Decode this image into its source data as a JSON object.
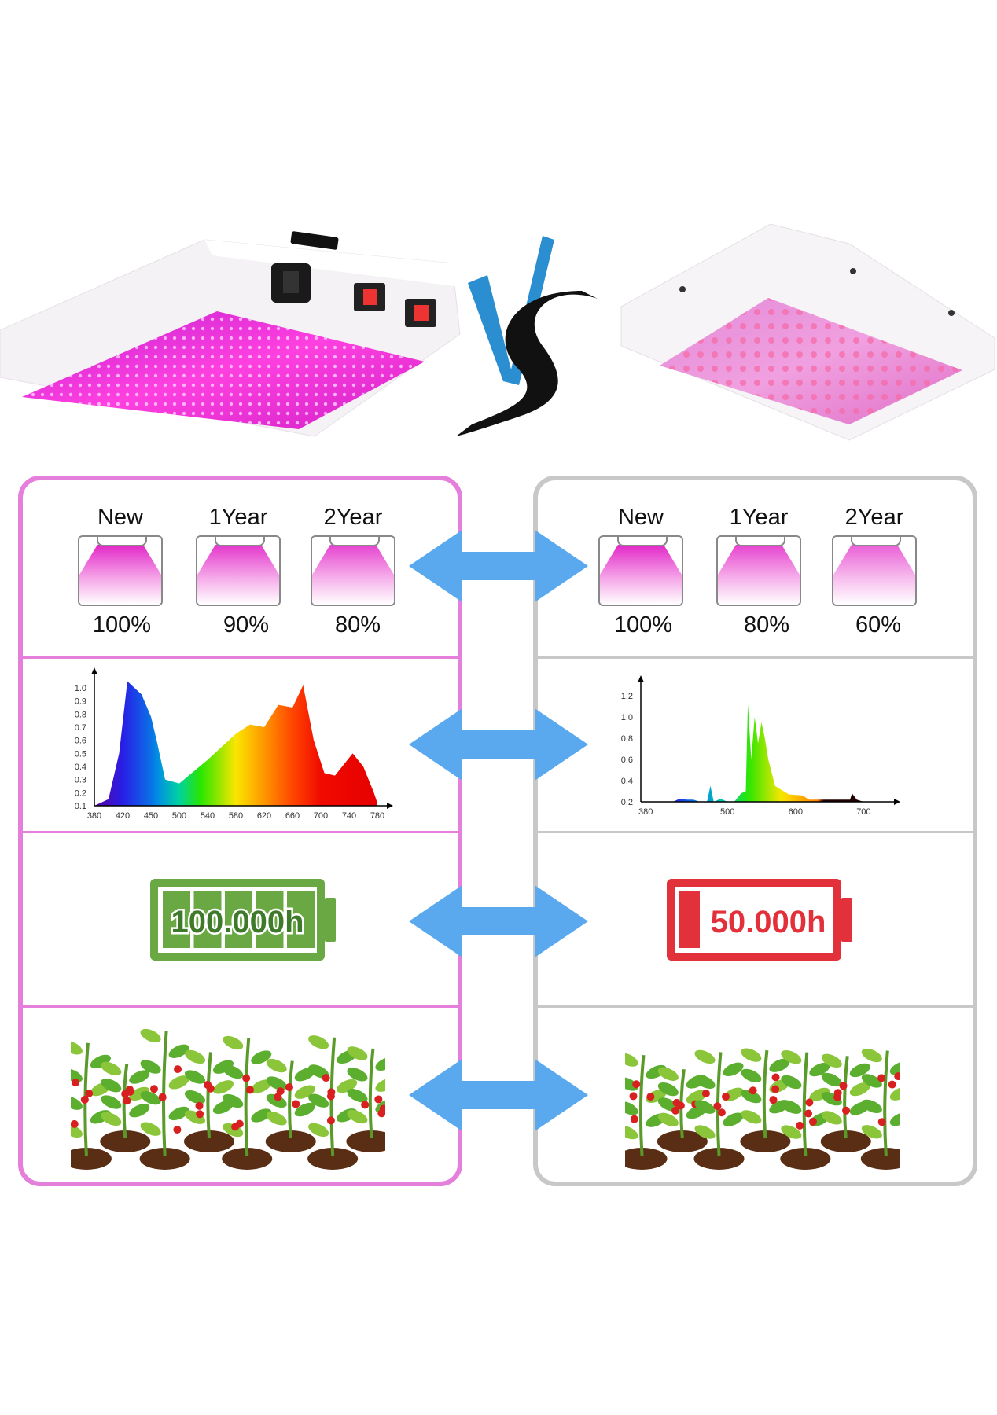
{
  "colors": {
    "left_panel_border": "#e47fdc",
    "right_panel_border": "#c8c8c8",
    "arrow": "#5aa9ee",
    "led_magenta": "#e040d0",
    "battery_green": "#6aa843",
    "battery_red": "#e2313a"
  },
  "header": {
    "vs_logo": "VS"
  },
  "left": {
    "decay": [
      {
        "label": "New",
        "percent": "100%",
        "level": 1.0
      },
      {
        "label": "1Year",
        "percent": "90%",
        "level": 0.9
      },
      {
        "label": "2Year",
        "percent": "80%",
        "level": 0.8
      }
    ],
    "battery": {
      "text": "100.000h",
      "fill": 1.0
    }
  },
  "right": {
    "decay": [
      {
        "label": "New",
        "percent": "100%",
        "level": 1.0
      },
      {
        "label": "1Year",
        "percent": "80%",
        "level": 0.8
      },
      {
        "label": "2Year",
        "percent": "60%",
        "level": 0.6
      }
    ],
    "battery": {
      "text": "50.000h",
      "fill": 0.1
    }
  },
  "chart_data": [
    {
      "type": "area",
      "xticks": [
        "380",
        "420",
        "450",
        "500",
        "540",
        "580",
        "620",
        "660",
        "700",
        "740",
        "780"
      ],
      "yticks": [
        "0.1",
        "0.2",
        "0.3",
        "0.4",
        "0.5",
        "0.6",
        "0.7",
        "0.8",
        "0.9",
        "1.0"
      ],
      "ylim": [
        0.1,
        1.0
      ],
      "x": [
        380,
        400,
        415,
        425,
        440,
        450,
        460,
        475,
        500,
        540,
        580,
        600,
        620,
        640,
        660,
        675,
        690,
        705,
        720,
        745,
        760,
        775,
        780
      ],
      "y": [
        0.1,
        0.15,
        0.5,
        1.05,
        0.95,
        0.78,
        0.6,
        0.3,
        0.27,
        0.45,
        0.65,
        0.72,
        0.7,
        0.87,
        0.85,
        1.02,
        0.6,
        0.35,
        0.33,
        0.5,
        0.4,
        0.2,
        0.12
      ]
    },
    {
      "type": "area",
      "xticks": [
        "380",
        "500",
        "600",
        "700"
      ],
      "yticks": [
        "0.2",
        "0.4",
        "0.6",
        "0.8",
        "1.0",
        "1.2"
      ],
      "xlim": [
        380,
        720
      ],
      "ylim": [
        0.2,
        1.2
      ],
      "x": [
        380,
        420,
        430,
        440,
        450,
        460,
        470,
        475,
        480,
        490,
        500,
        510,
        520,
        527,
        530,
        535,
        540,
        545,
        550,
        555,
        560,
        570,
        590,
        610,
        620,
        680,
        683,
        690,
        700
      ],
      "y": [
        0.2,
        0.2,
        0.23,
        0.22,
        0.22,
        0.2,
        0.2,
        0.35,
        0.2,
        0.23,
        0.2,
        0.2,
        0.28,
        0.3,
        1.12,
        0.6,
        1.0,
        0.75,
        0.95,
        0.8,
        0.6,
        0.35,
        0.27,
        0.26,
        0.22,
        0.22,
        0.28,
        0.22,
        0.2
      ]
    }
  ]
}
